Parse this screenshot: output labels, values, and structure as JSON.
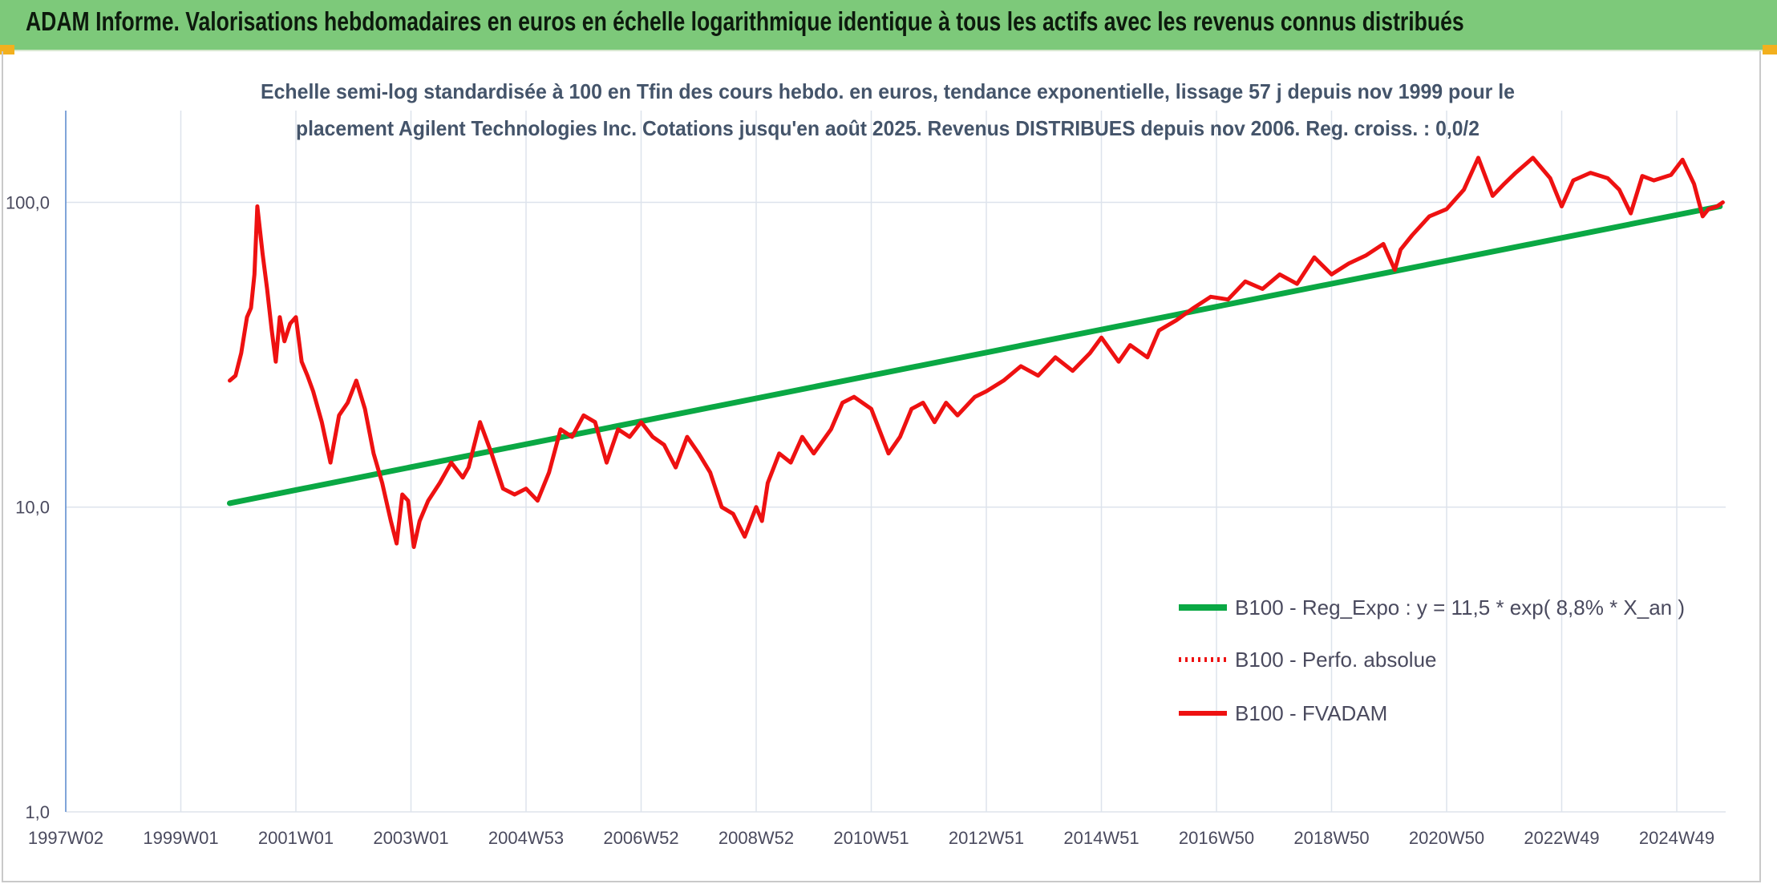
{
  "header": {
    "title": "ADAM Informe. Valorisations hebdomadaires en euros en échelle logarithmique identique à tous les actifs avec les revenus connus distribués",
    "background": "#7dc97a",
    "corner_color": "#f2b01e"
  },
  "chart_data": {
    "type": "line",
    "title_lines": [
      "Echelle semi-log standardisée à 100 en Tfin des cours hebdo. en euros, tendance exponentielle, lissage 57 j depuis nov 1999 pour le",
      "placement Agilent Technologies Inc. Cotations jusqu'en août 2025. Revenus DISTRIBUES depuis nov 2006. Reg. croiss. : 0,0/2"
    ],
    "y_scale": "log",
    "ylim": [
      1,
      200
    ],
    "y_ticks": [
      1,
      10,
      100
    ],
    "y_tick_labels": [
      "1,0",
      "10,0",
      "100,0"
    ],
    "xlim": [
      1997.0,
      2025.85
    ],
    "x_ticks": [
      1997.0,
      1999.0,
      2001.0,
      2003.0,
      2005.0,
      2007.0,
      2009.0,
      2011.0,
      2013.0,
      2015.0,
      2017.0,
      2019.0,
      2021.0,
      2023.0,
      2025.0
    ],
    "x_tick_labels": [
      "1997W02",
      "1999W01",
      "2001W01",
      "2003W01",
      "2004W53",
      "2006W52",
      "2008W52",
      "2010W51",
      "2012W51",
      "2014W51",
      "2016W50",
      "2018W50",
      "2020W50",
      "2022W49",
      "2024W49"
    ],
    "grid": true,
    "legend_position": "bottom-right",
    "colors": {
      "trend": "#0aa844",
      "fvadam": "#ee1111",
      "perf": "#ee1111",
      "grid": "#dde3ec",
      "axis": "#5b8bd0",
      "text": "#4a4a5e"
    },
    "series": [
      {
        "name": "B100 - Reg_Expo : y = 11,5 * exp( 8,8% *  X_an )",
        "style": "solid-green",
        "x": [
          1999.85,
          2025.75
        ],
        "y": [
          10.3,
          97
        ]
      },
      {
        "name": "B100 - Perfo. absolue",
        "style": "dotted-red",
        "x": [],
        "y": []
      },
      {
        "name": "B100 - FVADAM",
        "style": "solid-red",
        "x": [
          1999.85,
          1999.95,
          2000.05,
          2000.15,
          2000.22,
          2000.28,
          2000.33,
          2000.42,
          2000.5,
          2000.58,
          2000.65,
          2000.72,
          2000.8,
          2000.9,
          2001.0,
          2001.1,
          2001.2,
          2001.3,
          2001.45,
          2001.6,
          2001.75,
          2001.9,
          2002.05,
          2002.2,
          2002.35,
          2002.5,
          2002.65,
          2002.75,
          2002.85,
          2002.95,
          2003.05,
          2003.15,
          2003.3,
          2003.5,
          2003.7,
          2003.9,
          2004.0,
          2004.2,
          2004.4,
          2004.6,
          2004.8,
          2005.0,
          2005.2,
          2005.4,
          2005.6,
          2005.8,
          2006.0,
          2006.2,
          2006.4,
          2006.6,
          2006.8,
          2007.0,
          2007.2,
          2007.4,
          2007.6,
          2007.8,
          2008.0,
          2008.2,
          2008.4,
          2008.6,
          2008.8,
          2009.0,
          2009.1,
          2009.2,
          2009.4,
          2009.6,
          2009.8,
          2010.0,
          2010.3,
          2010.5,
          2010.7,
          2011.0,
          2011.3,
          2011.5,
          2011.7,
          2011.9,
          2012.1,
          2012.3,
          2012.5,
          2012.8,
          2013.0,
          2013.3,
          2013.6,
          2013.9,
          2014.2,
          2014.5,
          2014.8,
          2015.0,
          2015.3,
          2015.5,
          2015.8,
          2016.0,
          2016.3,
          2016.6,
          2016.9,
          2017.2,
          2017.5,
          2017.8,
          2018.1,
          2018.4,
          2018.7,
          2019.0,
          2019.3,
          2019.6,
          2019.9,
          2020.1,
          2020.2,
          2020.4,
          2020.7,
          2021.0,
          2021.3,
          2021.55,
          2021.8,
          2022.0,
          2022.2,
          2022.5,
          2022.8,
          2023.0,
          2023.2,
          2023.5,
          2023.8,
          2024.0,
          2024.2,
          2024.4,
          2024.6,
          2024.9,
          2025.1,
          2025.3,
          2025.45,
          2025.55,
          2025.7,
          2025.8
        ],
        "y": [
          26,
          27,
          32,
          42,
          45,
          58,
          97,
          68,
          52,
          38,
          30,
          42,
          35,
          40,
          42,
          30,
          27,
          24,
          19,
          14,
          20,
          22,
          26,
          21,
          15,
          12,
          9,
          7.6,
          11,
          10.5,
          7.4,
          9,
          10.5,
          12,
          14,
          12.5,
          13.5,
          19,
          15,
          11.5,
          11,
          11.5,
          10.5,
          13,
          18,
          17,
          20,
          19,
          14,
          18,
          17,
          19,
          17,
          16,
          13.5,
          17,
          15,
          13,
          10,
          9.5,
          8,
          10,
          9,
          12,
          15,
          14,
          17,
          15,
          18,
          22,
          23,
          21,
          15,
          17,
          21,
          22,
          19,
          22,
          20,
          23,
          24,
          26,
          29,
          27,
          31,
          28,
          32,
          36,
          30,
          34,
          31,
          38,
          41,
          45,
          49,
          48,
          55,
          52,
          58,
          54,
          66,
          58,
          63,
          67,
          73,
          60,
          70,
          78,
          90,
          95,
          110,
          140,
          105,
          115,
          125,
          140,
          120,
          97,
          118,
          125,
          120,
          110,
          92,
          122,
          118,
          123,
          138,
          115,
          90,
          95,
          97,
          100
        ]
      }
    ]
  }
}
